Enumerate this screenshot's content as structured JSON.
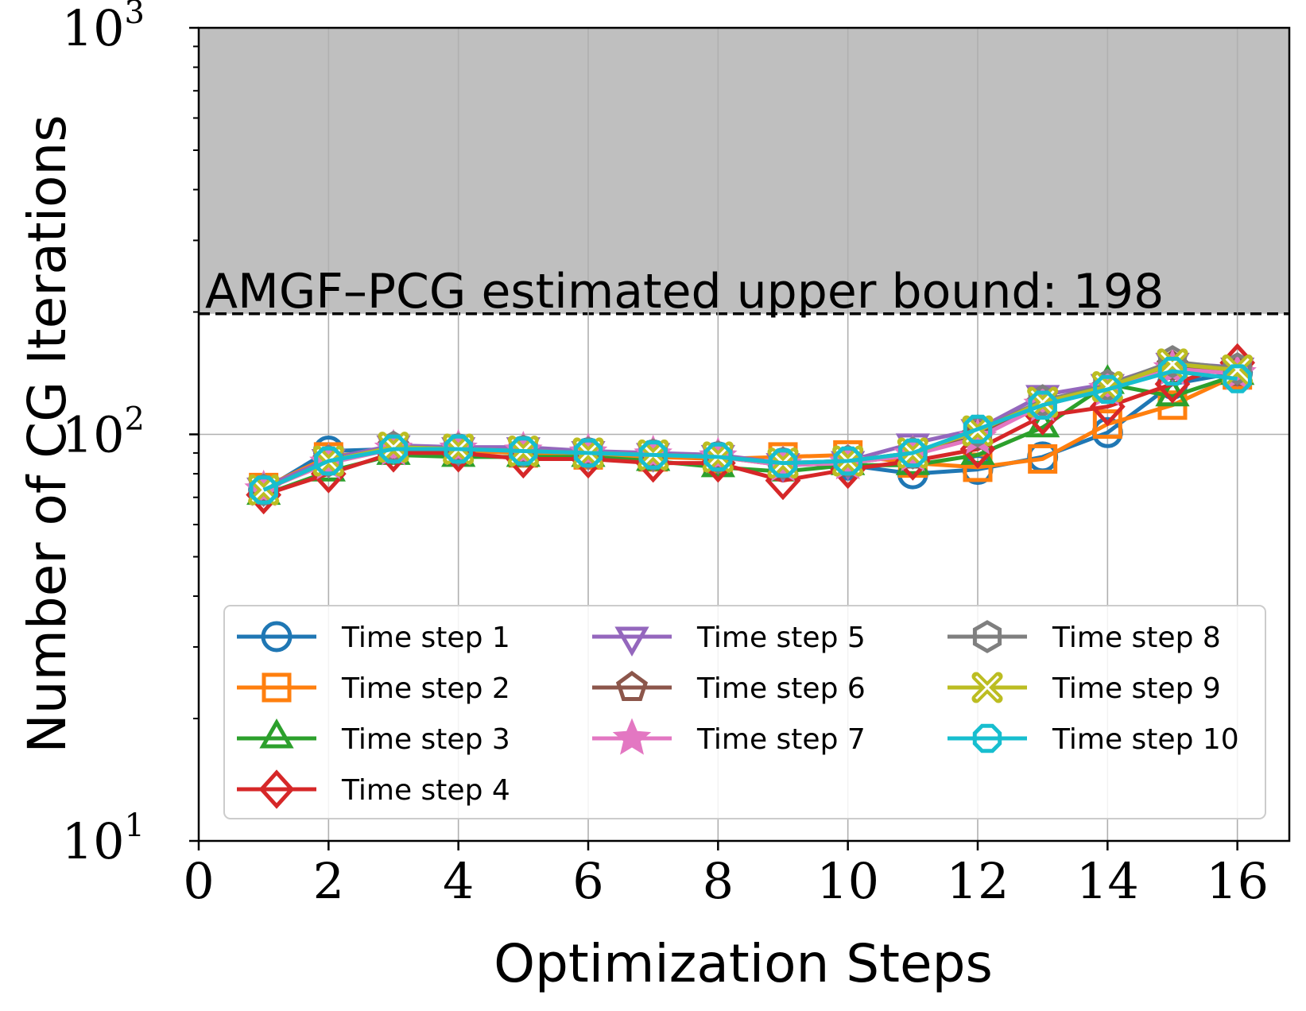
{
  "chart_data": {
    "type": "line",
    "xlabel": "Optimization Steps",
    "ylabel": "Number of CG Iterations",
    "yscale": "log",
    "xlim": [
      0,
      16.8
    ],
    "ylim": [
      10,
      1000
    ],
    "xticks": [
      0,
      2,
      4,
      6,
      8,
      10,
      12,
      14,
      16
    ],
    "yticks": [
      {
        "value": 10,
        "base": "10",
        "exp": "1"
      },
      {
        "value": 100,
        "base": "10",
        "exp": "2"
      },
      {
        "value": 1000,
        "base": "10",
        "exp": "3"
      }
    ],
    "grid": true,
    "upper_bound": {
      "value": 198,
      "label": "AMGF–PCG estimated upper bound: 198",
      "shade_color": "#bfbfbf"
    },
    "legend": {
      "location": "lower-center",
      "columns": 3
    },
    "x": [
      1,
      2,
      3,
      4,
      5,
      6,
      7,
      8,
      9,
      10,
      11,
      12,
      13,
      14,
      15,
      16
    ],
    "series": [
      {
        "name": "Time step 1",
        "color": "#1f77b4",
        "marker": "circle",
        "values": [
          73,
          91,
          92,
          92,
          91,
          90,
          89,
          88,
          85,
          84,
          80,
          82,
          88,
          101,
          133,
          142
        ]
      },
      {
        "name": "Time step 2",
        "color": "#ff7f0e",
        "marker": "square",
        "values": [
          74,
          88,
          92,
          91,
          90,
          89,
          88,
          87,
          88,
          89,
          85,
          83,
          87,
          106,
          118,
          140
        ]
      },
      {
        "name": "Time step 3",
        "color": "#2ca02c",
        "marker": "triangle-up",
        "values": [
          71,
          81,
          89,
          88,
          88,
          88,
          86,
          83,
          81,
          84,
          84,
          89,
          104,
          133,
          124,
          140
        ]
      },
      {
        "name": "Time step 4",
        "color": "#d62728",
        "marker": "diamond",
        "values": [
          71,
          80,
          90,
          90,
          87,
          87,
          85,
          85,
          77,
          82,
          86,
          92,
          111,
          117,
          133,
          150
        ]
      },
      {
        "name": "Time step 5",
        "color": "#9467bd",
        "marker": "triangle-down",
        "values": [
          74,
          87,
          94,
          93,
          93,
          91,
          90,
          89,
          85,
          86,
          95,
          103,
          125,
          133,
          150,
          146
        ]
      },
      {
        "name": "Time step 6",
        "color": "#8c564b",
        "marker": "pentagon",
        "values": [
          73,
          86,
          93,
          92,
          91,
          90,
          89,
          88,
          84,
          85,
          89,
          99,
          119,
          130,
          147,
          142
        ]
      },
      {
        "name": "Time step 7",
        "color": "#e377c2",
        "marker": "star",
        "values": [
          73,
          85,
          92,
          92,
          91,
          90,
          89,
          88,
          84,
          85,
          89,
          98,
          118,
          129,
          145,
          141
        ]
      },
      {
        "name": "Time step 8",
        "color": "#7f7f7f",
        "marker": "hexagon",
        "values": [
          73,
          86,
          93,
          92,
          91,
          90,
          89,
          88,
          85,
          86,
          90,
          102,
          121,
          132,
          151,
          145
        ]
      },
      {
        "name": "Time step 9",
        "color": "#bcbd22",
        "marker": "x-filled",
        "values": [
          73,
          86,
          93,
          92,
          91,
          90,
          89,
          88,
          85,
          86,
          90,
          102,
          120,
          131,
          149,
          144
        ]
      },
      {
        "name": "Time step 10",
        "color": "#17becf",
        "marker": "octagon",
        "values": [
          73,
          86,
          92,
          92,
          91,
          90,
          89,
          88,
          85,
          86,
          90,
          103,
          118,
          129,
          143,
          137
        ]
      }
    ]
  }
}
